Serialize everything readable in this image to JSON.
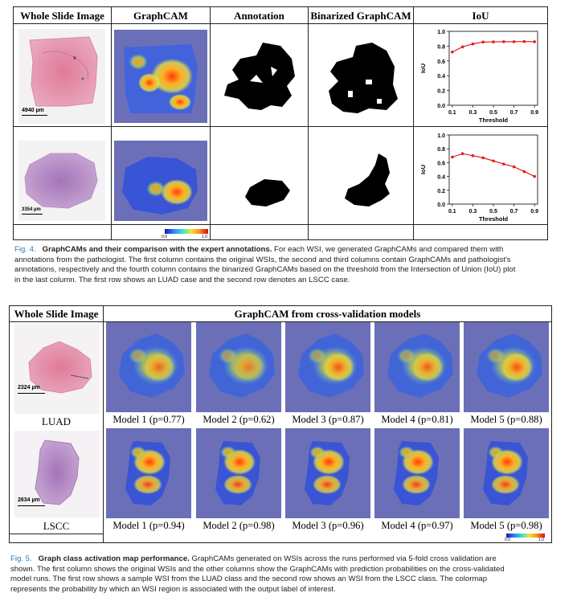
{
  "fig4": {
    "headers": [
      "Whole Slide Image",
      "GraphCAM",
      "Annotation",
      "Binarized GraphCAM",
      "IoU"
    ],
    "scale_bars": [
      "4940 µm",
      "3354 µm"
    ],
    "colorbar": {
      "min": "0.0",
      "max": "1.0"
    },
    "caption": {
      "label": "Fig. 4.",
      "title": "GraphCAMs and their comparison with the expert annotations.",
      "lines": [
        " For each WSI, we generated GraphCAMs and compared them with",
        "annotations from the pathologist. The first column contains the original WSIs, the second and third columns contain GraphCAMs and pathologist's",
        "annotations, respectively and the fourth column contains the binarized GraphCAMs based on the threshold from the Intersection of Union (IoU) plot",
        "in the last column. The first row shows an LUAD case and the second row denotes an LSCC case."
      ]
    }
  },
  "chart_data": [
    {
      "type": "line",
      "xlabel": "Threshold",
      "ylabel": "IoU",
      "x": [
        0.1,
        0.2,
        0.3,
        0.4,
        0.5,
        0.6,
        0.7,
        0.8,
        0.9
      ],
      "xticks": [
        "0.1",
        "0.3",
        "0.5",
        "0.7",
        "0.9"
      ],
      "yticks": [
        "0.0",
        "0.2",
        "0.4",
        "0.6",
        "0.8",
        "1.0"
      ],
      "ylim": [
        0,
        1
      ],
      "series": [
        {
          "values": [
            0.72,
            0.79,
            0.83,
            0.855,
            0.858,
            0.86,
            0.86,
            0.862,
            0.86
          ],
          "color": "#e02020"
        }
      ]
    },
    {
      "type": "line",
      "xlabel": "Threshold",
      "ylabel": "IoU",
      "x": [
        0.1,
        0.2,
        0.3,
        0.4,
        0.5,
        0.6,
        0.7,
        0.8,
        0.9
      ],
      "xticks": [
        "0.1",
        "0.3",
        "0.5",
        "0.7",
        "0.9"
      ],
      "yticks": [
        "0.0",
        "0.2",
        "0.4",
        "0.6",
        "0.8",
        "1.0"
      ],
      "ylim": [
        0,
        1
      ],
      "series": [
        {
          "values": [
            0.68,
            0.73,
            0.7,
            0.67,
            0.625,
            0.58,
            0.54,
            0.47,
            0.4
          ],
          "color": "#e02020"
        }
      ]
    }
  ],
  "fig5": {
    "header_left": "Whole Slide Image",
    "header_right": "GraphCAM from cross-validation models",
    "rows": [
      {
        "label": "LUAD",
        "scale": "2324 µm",
        "models": [
          "Model 1 (p=0.77)",
          "Model 2 (p=0.62)",
          "Model 3 (p=0.87)",
          "Model 4 (p=0.81)",
          "Model 5 (p=0.88)"
        ]
      },
      {
        "label": "LSCC",
        "scale": "2634 µm",
        "models": [
          "Model 1 (p=0.94)",
          "Model 2 (p=0.98)",
          "Model 3 (p=0.96)",
          "Model 4 (p=0.97)",
          "Model 5 (p=0.98)"
        ]
      }
    ],
    "colorbar": {
      "min": "0.0",
      "max": "1.0"
    },
    "caption": {
      "label": "Fig. 5.",
      "title": "Graph class activation map performance.",
      "lines": [
        " GraphCAMs generated on WSIs across the runs performed via 5-fold cross validation are",
        "shown. The first column shows the original WSIs and the other columns show the GraphCAMs with prediction probabilities on the cross-validated",
        "model runs. The first row shows a sample WSI from the LUAD class and the second row shows an WSI from the LSCC class. The colormap",
        "represents the probability by which an WSI region is associated with the output label of interest."
      ]
    }
  }
}
